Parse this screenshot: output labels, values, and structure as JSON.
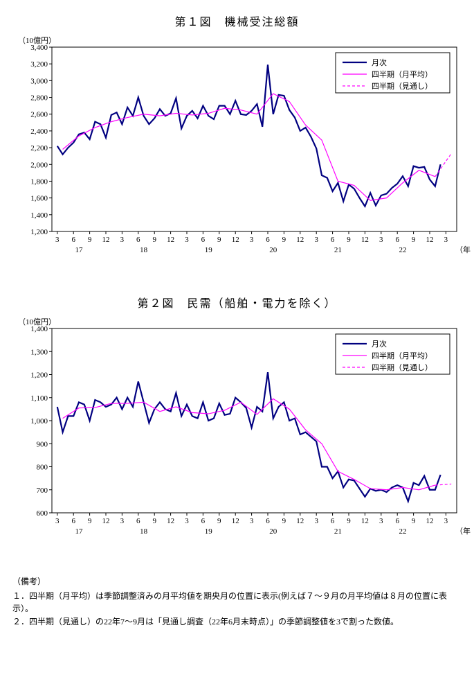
{
  "chart1": {
    "type": "line",
    "title": "第１図　機械受注総額",
    "y_unit": "（10億円）",
    "x_tail": "（年度）",
    "ylim": [
      1200,
      3400
    ],
    "ytick_step": 200,
    "background_color": "#ffffff",
    "border_color": "#000000",
    "x_months": [
      "3",
      "6",
      "9",
      "12",
      "3",
      "6",
      "9",
      "12",
      "3",
      "6",
      "9",
      "12",
      "3",
      "6",
      "9",
      "12",
      "3",
      "6",
      "9",
      "12",
      "3",
      "6",
      "9",
      "12",
      "3"
    ],
    "x_years": [
      "17",
      "18",
      "19",
      "20",
      "21",
      "22"
    ],
    "legend": {
      "monthly": "月次",
      "qavg": "四半期（月平均）",
      "forecast": "四半期（見通し）"
    },
    "colors": {
      "monthly": "#000080",
      "qavg": "#ff00ff",
      "forecast": "#ff00ff"
    },
    "line_widths": {
      "monthly": 2.2,
      "qavg": 1.2,
      "forecast": 1.2
    },
    "monthly": [
      2220,
      2120,
      2200,
      2260,
      2360,
      2380,
      2300,
      2510,
      2480,
      2320,
      2590,
      2620,
      2480,
      2680,
      2580,
      2800,
      2580,
      2480,
      2550,
      2660,
      2580,
      2610,
      2790,
      2430,
      2580,
      2640,
      2550,
      2700,
      2580,
      2540,
      2700,
      2700,
      2600,
      2760,
      2600,
      2590,
      2640,
      2720,
      2450,
      3190,
      2600,
      2830,
      2820,
      2650,
      2560,
      2400,
      2440,
      2330,
      2190,
      1870,
      1840,
      1680,
      1780,
      1560,
      1760,
      1710,
      1600,
      1500,
      1660,
      1510,
      1630,
      1650,
      1720,
      1770,
      1860,
      1740,
      1980,
      1960,
      1970,
      1820,
      1740,
      2000
    ],
    "qavg_x": [
      1,
      4,
      7,
      10,
      13,
      16,
      19,
      22,
      25,
      28,
      31,
      34,
      37,
      40,
      43,
      46,
      49,
      52,
      55,
      58,
      61,
      64,
      67,
      70
    ],
    "qavg_y": [
      2180,
      2340,
      2440,
      2510,
      2560,
      2600,
      2580,
      2610,
      2590,
      2610,
      2670,
      2650,
      2600,
      2845,
      2750,
      2470,
      2290,
      1800,
      1750,
      1570,
      1600,
      1780,
      1930,
      1855
    ],
    "forecast_x": [
      70,
      73
    ],
    "forecast_y": [
      1855,
      2130
    ]
  },
  "chart2": {
    "type": "line",
    "title": "第２図　民需（船舶・電力を除く）",
    "y_unit": "（10億円）",
    "x_tail": "（年度）",
    "ylim": [
      600,
      1400
    ],
    "ytick_step": 100,
    "background_color": "#ffffff",
    "border_color": "#000000",
    "x_months": [
      "3",
      "6",
      "9",
      "12",
      "3",
      "6",
      "9",
      "12",
      "3",
      "6",
      "9",
      "12",
      "3",
      "6",
      "9",
      "12",
      "3",
      "6",
      "9",
      "12",
      "3",
      "6",
      "9",
      "12",
      "3"
    ],
    "x_years": [
      "17",
      "18",
      "19",
      "20",
      "21",
      "22"
    ],
    "legend": {
      "monthly": "月次",
      "qavg": "四半期（月平均）",
      "forecast": "四半期（見通し）"
    },
    "colors": {
      "monthly": "#000080",
      "qavg": "#ff00ff",
      "forecast": "#ff00ff"
    },
    "line_widths": {
      "monthly": 2.2,
      "qavg": 1.2,
      "forecast": 1.2
    },
    "monthly": [
      1060,
      950,
      1020,
      1020,
      1080,
      1070,
      1000,
      1090,
      1080,
      1060,
      1070,
      1100,
      1050,
      1100,
      1060,
      1170,
      1080,
      990,
      1050,
      1080,
      1050,
      1040,
      1120,
      1020,
      1070,
      1020,
      1010,
      1080,
      1000,
      1010,
      1075,
      1025,
      1030,
      1100,
      1080,
      1055,
      970,
      1060,
      1040,
      1210,
      1010,
      1060,
      1080,
      1000,
      1010,
      940,
      950,
      930,
      910,
      800,
      800,
      750,
      780,
      710,
      745,
      740,
      705,
      670,
      705,
      695,
      700,
      690,
      710,
      720,
      710,
      650,
      730,
      720,
      760,
      700,
      700,
      765
    ],
    "qavg_x": [
      1,
      4,
      7,
      10,
      13,
      16,
      19,
      22,
      25,
      28,
      31,
      34,
      37,
      40,
      43,
      46,
      49,
      52,
      55,
      58,
      61,
      64,
      67,
      70
    ],
    "qavg_y": [
      1010,
      1055,
      1057,
      1075,
      1075,
      1080,
      1040,
      1060,
      1035,
      1030,
      1045,
      1080,
      1027,
      1095,
      1050,
      960,
      900,
      780,
      745,
      705,
      700,
      710,
      700,
      720
    ],
    "forecast_x": [
      70,
      73
    ],
    "forecast_y": [
      720,
      725
    ]
  },
  "notes": {
    "header": "（備考）",
    "line1": "１．四半期（月平均）は季節調整済みの月平均値を期央月の位置に表示(例えば７～９月の月平均値は８月の位置に表示）。",
    "line2": "２．四半期（見通し）の22年7～9月は「見通し調査（22年6月末時点）」の季節調整値を3で割った数値。"
  }
}
